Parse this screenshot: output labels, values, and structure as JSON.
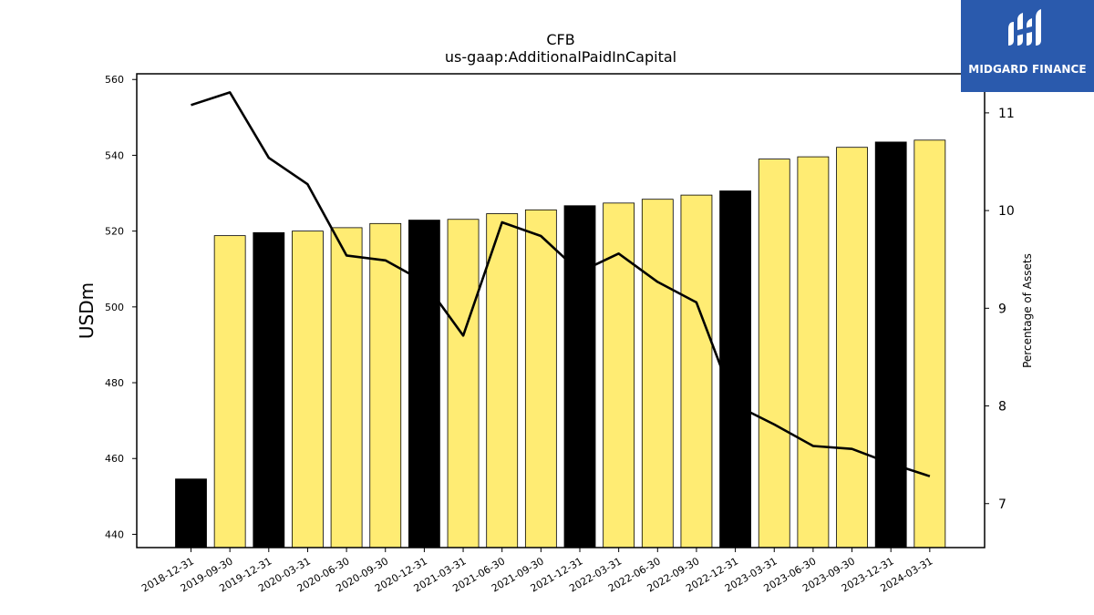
{
  "logo": {
    "text": "MIDGARD FINANCE",
    "background": "#2a5aad"
  },
  "chart_data": {
    "type": "bar",
    "title": "CFB",
    "subtitle": "us-gaap:AdditionalPaidInCapital",
    "ylabel": "USDm",
    "y2label": "Percentage of Assets",
    "ylim": [
      436.5,
      561.5
    ],
    "y2lim": [
      6.55,
      11.4
    ],
    "yticks": [
      440,
      460,
      480,
      500,
      520,
      540,
      560
    ],
    "y2ticks": [
      7,
      8,
      9,
      10,
      11
    ],
    "categories": [
      "2018-12-31",
      "2019-09-30",
      "2019-12-31",
      "2020-03-31",
      "2020-06-30",
      "2020-09-30",
      "2020-12-31",
      "2021-03-31",
      "2021-06-30",
      "2021-09-30",
      "2021-12-31",
      "2022-03-31",
      "2022-06-30",
      "2022-09-30",
      "2022-12-31",
      "2023-03-31",
      "2023-06-30",
      "2023-09-30",
      "2023-12-31",
      "2024-03-31"
    ],
    "series": [
      {
        "type": "bar",
        "values": [
          454.6,
          518.8,
          519.6,
          520.0,
          520.9,
          522.0,
          522.9,
          523.1,
          524.6,
          525.6,
          526.7,
          527.4,
          528.4,
          529.5,
          530.6,
          539.0,
          539.6,
          542.1,
          543.5,
          544.0
        ],
        "colors": [
          "#000000",
          "#ffec73",
          "#000000",
          "#ffec73",
          "#ffec73",
          "#ffec73",
          "#000000",
          "#ffec73",
          "#ffec73",
          "#ffec73",
          "#000000",
          "#ffec73",
          "#ffec73",
          "#ffec73",
          "#000000",
          "#ffec73",
          "#ffec73",
          "#ffec73",
          "#000000",
          "#ffec73"
        ]
      },
      {
        "type": "line",
        "axis": "right",
        "color": "#000000",
        "values": [
          11.08,
          11.21,
          10.54,
          10.27,
          9.54,
          9.49,
          9.27,
          8.72,
          9.88,
          9.74,
          9.37,
          9.56,
          9.27,
          9.06,
          8.01,
          7.81,
          7.59,
          7.56,
          7.41,
          7.28
        ]
      }
    ],
    "grid": false
  }
}
